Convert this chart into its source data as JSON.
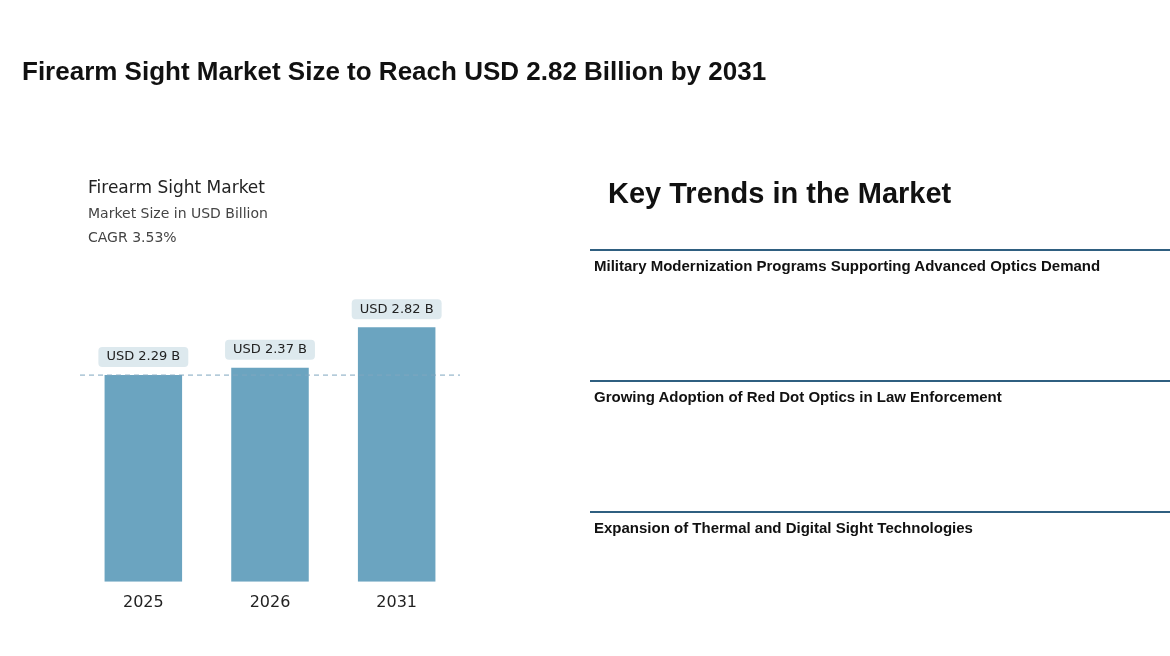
{
  "chart_data": [
    {
      "type": "bar",
      "title": "Firearm Sight Market Size to Reach USD 2.82 Billion by 2031",
      "subtitle": "Firearm Sight Market",
      "annotations": [
        "Market Size in USD Billion",
        "CAGR 3.53%"
      ],
      "categories": [
        "2025",
        "2026",
        "2031"
      ],
      "values": [
        2.29,
        2.37,
        2.82
      ],
      "value_labels": [
        "USD 2.29 B",
        "USD 2.37 B",
        "USD 2.82 B"
      ],
      "color": "#6ba4c0",
      "tick_labels": "x",
      "ref_lines": [
        {
          "axis": "y",
          "value": 2.29,
          "color": "#7fa6bf",
          "line_style": "dashed"
        }
      ]
    },
    {
      "type": "other",
      "title": "Key Trends in the Market",
      "annotations": [
        "Military Modernization Programs Supporting Advanced Optics Demand",
        "Growing Adoption of Red Dot Optics in Law Enforcement",
        "Expansion of Thermal and Digital Sight Technologies"
      ]
    }
  ]
}
